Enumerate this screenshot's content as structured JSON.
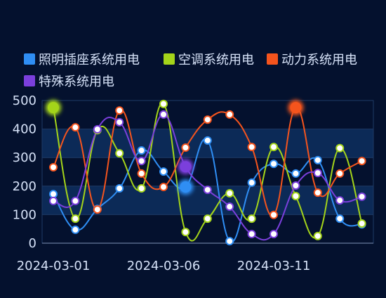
{
  "chart_data": {
    "type": "line",
    "categories": [
      "2024-03-01",
      null,
      null,
      null,
      null,
      "2024-03-06",
      null,
      null,
      null,
      null,
      "2024-03-11",
      null,
      null,
      null,
      null
    ],
    "series": [
      {
        "name": "照明插座系统用电",
        "color": "#2f8ef4",
        "highlight": 6,
        "values": [
          172,
          47,
          120,
          192,
          325,
          251,
          197,
          360,
          7,
          212,
          278,
          244,
          291,
          86,
          66
        ]
      },
      {
        "name": "空调系统用电",
        "color": "#a4d41a",
        "highlight": 0,
        "values": [
          475,
          86,
          396,
          315,
          192,
          488,
          39,
          86,
          175,
          86,
          337,
          165,
          25,
          333,
          69
        ]
      },
      {
        "name": "动力系统用电",
        "color": "#f5541d",
        "highlight": 11,
        "values": [
          266,
          406,
          118,
          465,
          244,
          197,
          335,
          433,
          451,
          337,
          99,
          475,
          177,
          244,
          288
        ]
      },
      {
        "name": "特殊系统用电",
        "color": "#7b3fdc",
        "highlight": 6,
        "values": [
          148,
          148,
          399,
          424,
          288,
          451,
          268,
          187,
          128,
          32,
          32,
          202,
          246,
          150,
          163
        ]
      }
    ],
    "ylim": [
      0,
      500
    ],
    "yticks": [
      0,
      100,
      200,
      300,
      400,
      500
    ],
    "grid": true
  }
}
